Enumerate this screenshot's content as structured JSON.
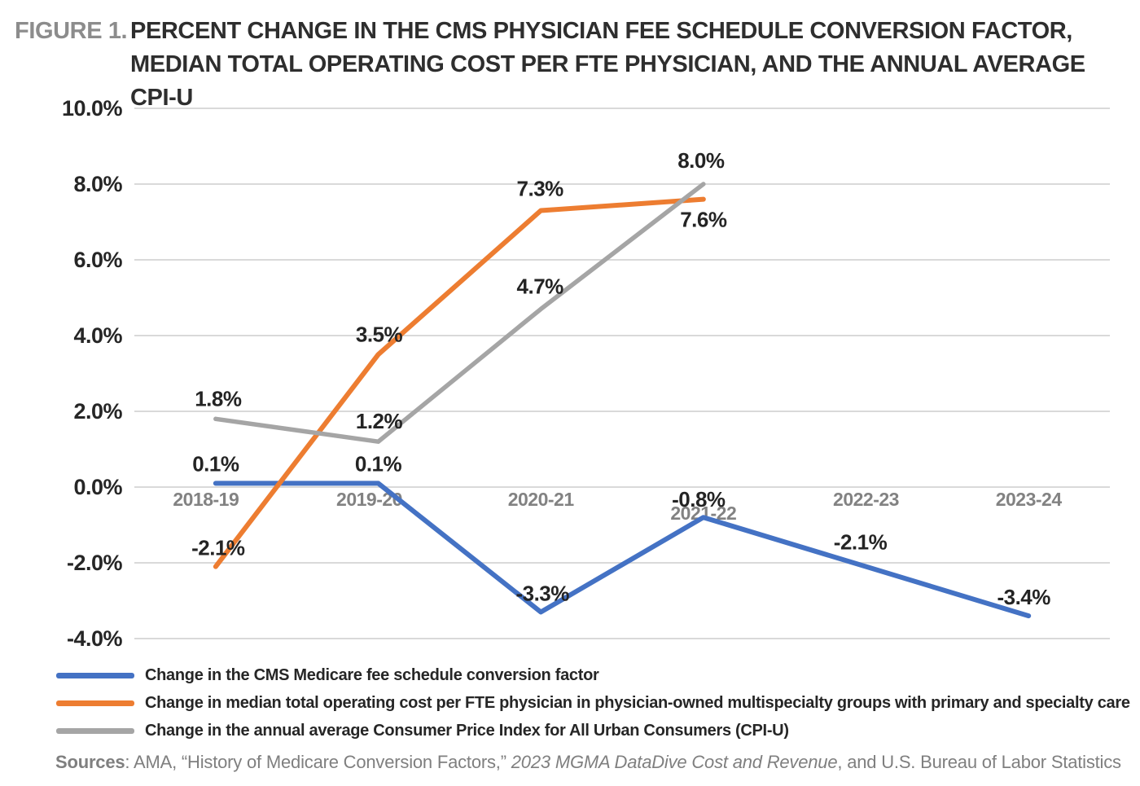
{
  "figure": {
    "label": "FIGURE 1.",
    "title_lines": [
      "PERCENT CHANGE IN THE CMS PHYSICIAN FEE SCHEDULE CONVERSION FACTOR,",
      "MEDIAN TOTAL OPERATING COST PER FTE PHYSICIAN, AND THE ANNUAL AVERAGE CPI-U"
    ]
  },
  "chart_data": {
    "type": "line",
    "categories": [
      "2018-19",
      "2019-20",
      "2020-21",
      "2021-22",
      "2022-23",
      "2023-24"
    ],
    "series": [
      {
        "name": "Change in the CMS Medicare fee schedule conversion factor",
        "color": "#4472C4",
        "values": [
          0.1,
          0.1,
          -3.3,
          -0.8,
          -2.1,
          -3.4
        ]
      },
      {
        "name": "Change in median total operating cost per FTE physician in physician-owned multispecialty groups with primary and specialty care",
        "color": "#ED7D31",
        "values": [
          -2.1,
          3.5,
          7.3,
          7.6
        ]
      },
      {
        "name": "Change in the annual average Consumer Price Index for All Urban Consumers (CPI-U)",
        "color": "#A5A5A5",
        "values": [
          1.8,
          1.2,
          4.7,
          8.0
        ]
      }
    ],
    "title": "",
    "xlabel": "",
    "ylabel": "",
    "ylim": [
      -4,
      10
    ],
    "ytick_values": [
      10,
      8,
      6,
      4,
      2,
      0,
      -2,
      -4
    ],
    "ytick_labels": [
      "10.0%",
      "8.0%",
      "6.0%",
      "4.0%",
      "2.0%",
      "0.0%",
      "-2.0%",
      "-4.0%"
    ],
    "grid": true,
    "legend_position": "bottom",
    "data_labels": true,
    "data_label_format": "0.0%"
  },
  "colors": {
    "grid": "#D9D9D9",
    "data_label": "#242424",
    "axis_tick_label": "#262626",
    "category_label": "#828282",
    "figure_label": "#8C8C8C",
    "title_text": "#2E2E2E",
    "source_text": "#7F7F7F",
    "background": "#FFFFFF"
  },
  "sources": {
    "prefix": "Sources",
    "segments": [
      {
        "text": ": AMA, “History of Medicare Conversion Factors,” ",
        "italic": false
      },
      {
        "text": "2023 MGMA DataDive Cost and Revenue",
        "italic": true
      },
      {
        "text": ", and U.S. Bureau of Labor Statistics",
        "italic": false
      }
    ]
  }
}
